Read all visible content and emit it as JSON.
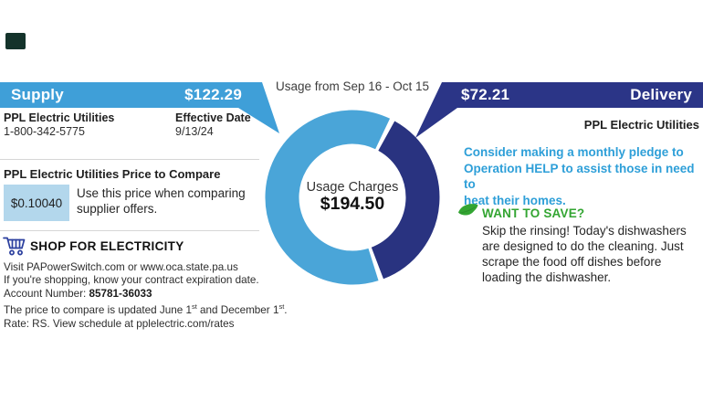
{
  "colors": {
    "supply_blue": "#3F9FD8",
    "delivery_navy": "#2B3587",
    "donut_supply": "#4AA5D8",
    "donut_delivery": "#293380",
    "price_box_bg": "#B3D7EC",
    "pledge_blue": "#2E9FD8",
    "save_green": "#33A532",
    "cart_blue": "#2B3F9E",
    "badge_dark": "#14332B"
  },
  "supply": {
    "label": "Supply",
    "amount": "$122.29",
    "provider": "PPL Electric Utilities",
    "phone": "1-800-342-5775",
    "effective_date_label": "Effective Date",
    "effective_date": "9/13/24"
  },
  "price_to_compare": {
    "heading": "PPL Electric Utilities Price to Compare",
    "price": "$0.10040",
    "note_line1": "Use this price when comparing",
    "note_line2": "supplier offers."
  },
  "shop": {
    "heading": "SHOP FOR ELECTRICITY",
    "line_visit": "Visit PAPowerSwitch.com or www.oca.state.pa.us",
    "line_shopping": "If you're shopping, know your contract expiration date.",
    "account_label": "Account Number: ",
    "account_number": "85781-36033",
    "ptc_part1": "The price to compare is updated June 1",
    "ptc_sup1": "st",
    "ptc_part2": " and December 1",
    "ptc_sup2": "st",
    "ptc_part3": ".",
    "line_rate": "Rate: RS. View schedule at pplelectric.com/rates"
  },
  "delivery": {
    "label": "Delivery",
    "amount": "$72.21",
    "provider": "PPL Electric Utilities"
  },
  "pledge": {
    "line1": "Consider making a monthly pledge to",
    "line2": "Operation HELP to assist those in need to",
    "line3": "heat their homes."
  },
  "save_tip": {
    "heading": "WANT TO SAVE?",
    "line1": "Skip the rinsing! Today's dishwashers",
    "line2": "are designed to do the cleaning. Just",
    "line3": "scrape the food off dishes before",
    "line4": "loading the dishwasher."
  },
  "chart_data": {
    "type": "pie",
    "subtype": "donut",
    "title": "Usage Charges",
    "subtitle": "Usage from Sep 16 - Oct 15",
    "center_label": "Usage Charges",
    "center_value": "$194.50",
    "total": 194.5,
    "legend_position": "callout-banners",
    "segments": [
      {
        "name": "Supply",
        "value": 122.29,
        "color": "#4AA5D8"
      },
      {
        "name": "Delivery",
        "value": 72.21,
        "color": "#293380"
      }
    ]
  }
}
